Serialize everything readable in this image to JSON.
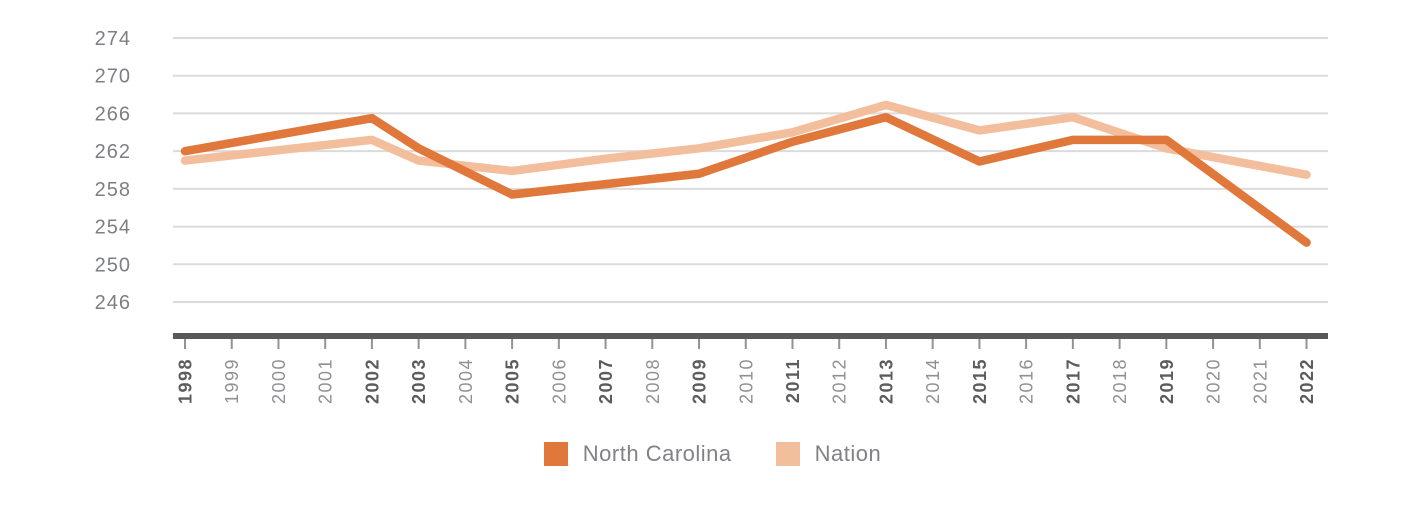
{
  "chart_data": {
    "type": "line",
    "title": "",
    "x_axis": {
      "categories": [
        "1998",
        "1999",
        "2000",
        "2001",
        "2002",
        "2003",
        "2004",
        "2005",
        "2006",
        "2007",
        "2008",
        "2009",
        "2010",
        "2011",
        "2012",
        "2013",
        "2014",
        "2015",
        "2016",
        "2017",
        "2018",
        "2019",
        "2020",
        "2021",
        "2022"
      ],
      "bold_categories": [
        "1998",
        "2002",
        "2003",
        "2005",
        "2007",
        "2009",
        "2011",
        "2013",
        "2015",
        "2017",
        "2019",
        "2022"
      ],
      "label_rotation": -90
    },
    "y_axis": {
      "tick_labels": [
        274,
        270,
        266,
        262,
        258,
        254,
        250,
        246
      ],
      "visible_range": [
        243,
        276
      ]
    },
    "grid": "horizontal",
    "legend_position": "bottom-center",
    "series": [
      {
        "name": "North Carolina",
        "color": "#E0783C",
        "x": [
          1998,
          2002,
          2003,
          2005,
          2007,
          2009,
          2011,
          2013,
          2015,
          2017,
          2019,
          2022
        ],
        "values": [
          262.0,
          265.5,
          262.3,
          257.4,
          258.5,
          259.6,
          263.0,
          265.6,
          260.9,
          263.2,
          263.2,
          252.3
        ]
      },
      {
        "name": "Nation",
        "color": "#F3BE9C",
        "x": [
          1998,
          2002,
          2003,
          2005,
          2007,
          2009,
          2011,
          2013,
          2015,
          2017,
          2019,
          2022
        ],
        "values": [
          261.0,
          263.2,
          261.0,
          259.9,
          261.2,
          262.3,
          264.0,
          266.9,
          264.2,
          265.6,
          262.3,
          259.5
        ]
      }
    ]
  },
  "legend": {
    "items": [
      {
        "label": "North Carolina",
        "color": "#E0783C"
      },
      {
        "label": "Nation",
        "color": "#F3BE9C"
      }
    ]
  },
  "colors": {
    "background": "#FFFFFF",
    "axis_bar": "#58595B",
    "gridline": "#DBDBDB",
    "tick": "#919396",
    "y_label": "#7D7F83",
    "x_label": "#8E9093",
    "x_label_bold": "#5B5C5E",
    "legend_text": "#808285"
  }
}
